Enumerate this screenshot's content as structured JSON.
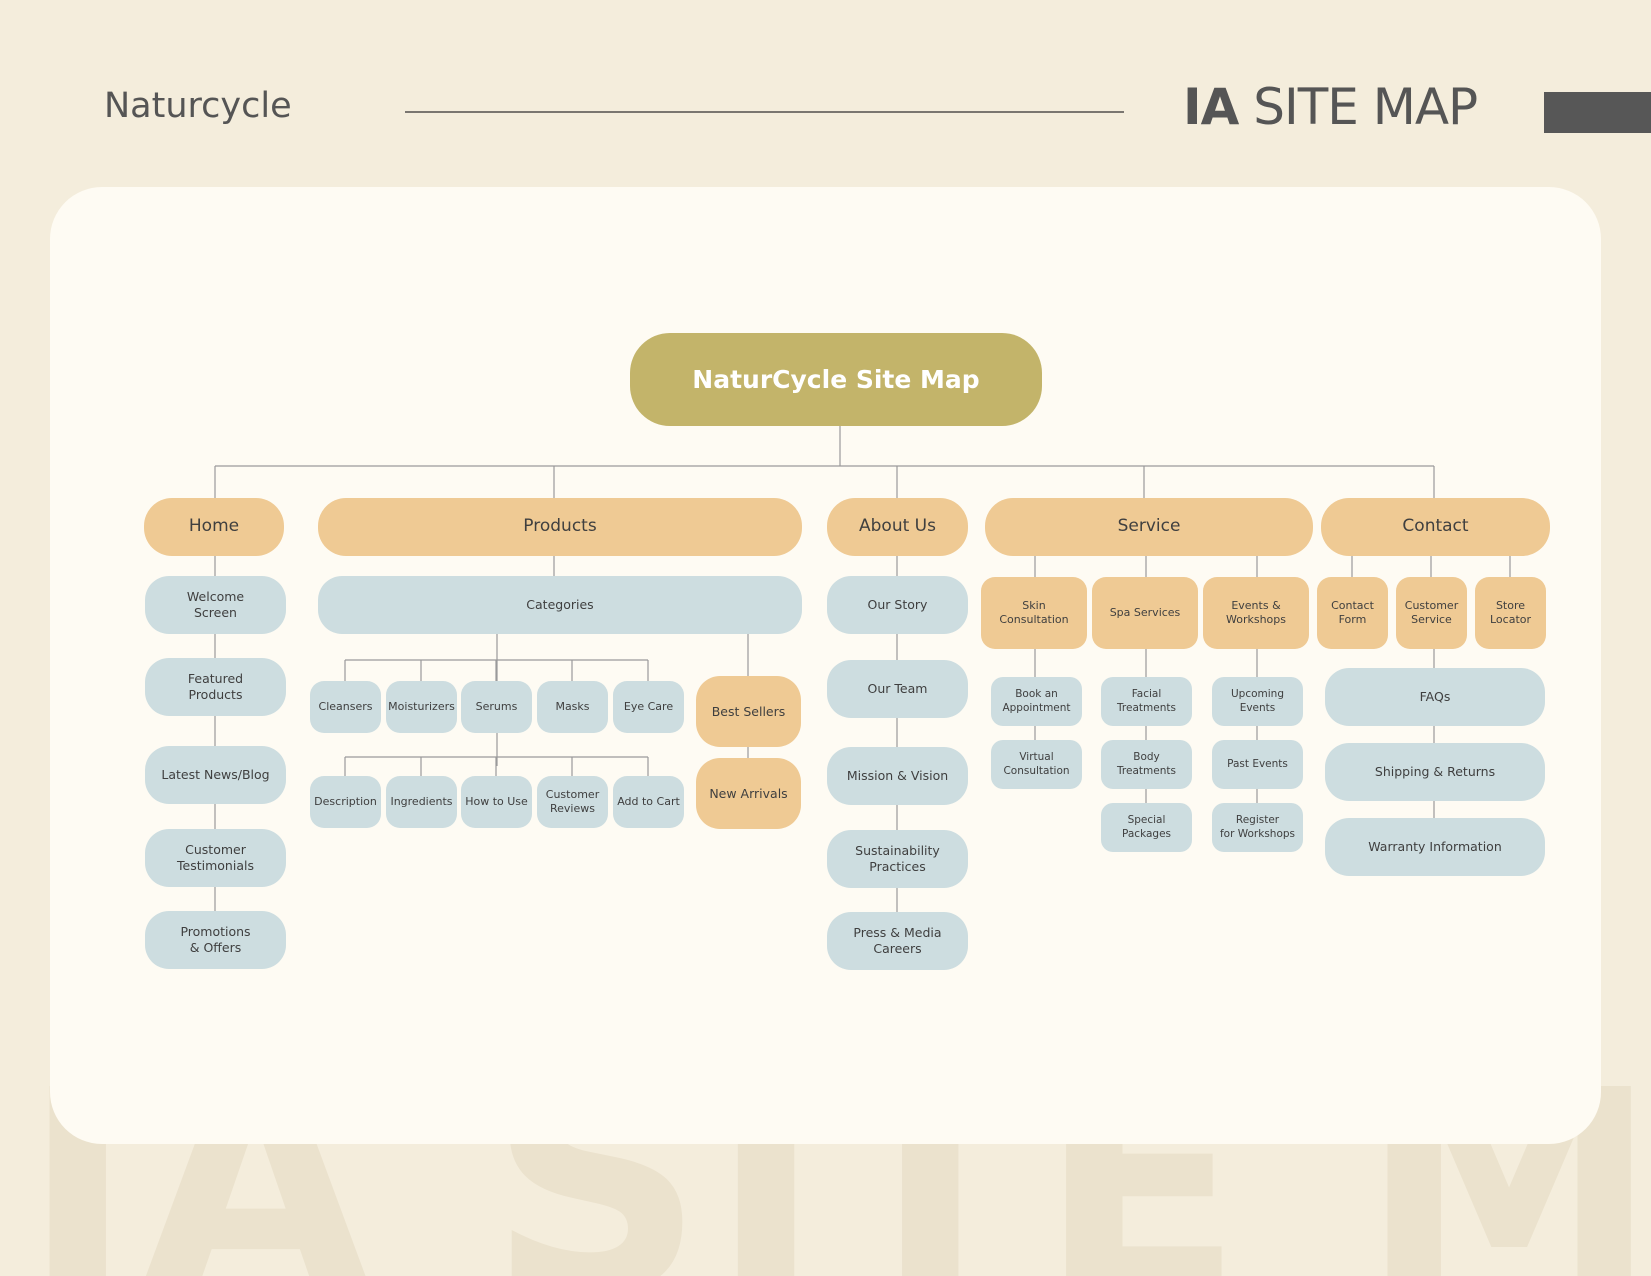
{
  "header": {
    "brand": "Naturcycle",
    "title_bold": "IA",
    "title_rest": " SITE MAP",
    "background_word": "IA SITE MAP"
  },
  "colors": {
    "background": "#f4eddc",
    "card": "#fefbf3",
    "root": "#c3b46a",
    "primary_node": "#efca94",
    "secondary_node": "#cddde0",
    "connector": "#9a9a9a"
  },
  "sitemap": {
    "root": "NaturCycle Site Map",
    "home": {
      "label": "Home",
      "children": [
        "Welcome\nScreen",
        "Featured\nProducts",
        "Latest News/Blog",
        "Customer\nTestimonials",
        "Promotions\n& Offers"
      ]
    },
    "products": {
      "label": "Products",
      "categories": "Categories",
      "category_items": [
        "Cleansers",
        "Moisturizers",
        "Serums",
        "Masks",
        "Eye Care"
      ],
      "product_details": [
        "Description",
        "Ingredients",
        "How to Use",
        "Customer\nReviews",
        "Add to Cart"
      ],
      "best_sellers": "Best Sellers",
      "new_arrivals": "New Arrivals"
    },
    "about": {
      "label": "About Us",
      "children": [
        "Our Story",
        "Our Team",
        "Mission & Vision",
        "Sustainability\nPractices",
        "Press & Media\nCareers"
      ]
    },
    "service": {
      "label": "Service",
      "groups": [
        {
          "label": "Skin\nConsultation",
          "children": [
            "Book an\nAppointment",
            "Virtual\nConsultation"
          ]
        },
        {
          "label": "Spa Services",
          "children": [
            "Facial\nTreatments",
            "Body\nTreatments",
            "Special\nPackages"
          ]
        },
        {
          "label": "Events &\nWorkshops",
          "children": [
            "Upcoming\nEvents",
            "Past Events",
            "Register\nfor Workshops"
          ]
        }
      ]
    },
    "contact": {
      "label": "Contact",
      "groups": [
        "Contact\nForm",
        "Customer\nService",
        "Store\nLocator"
      ],
      "children": [
        "FAQs",
        "Shipping & Returns",
        "Warranty Information"
      ]
    }
  }
}
